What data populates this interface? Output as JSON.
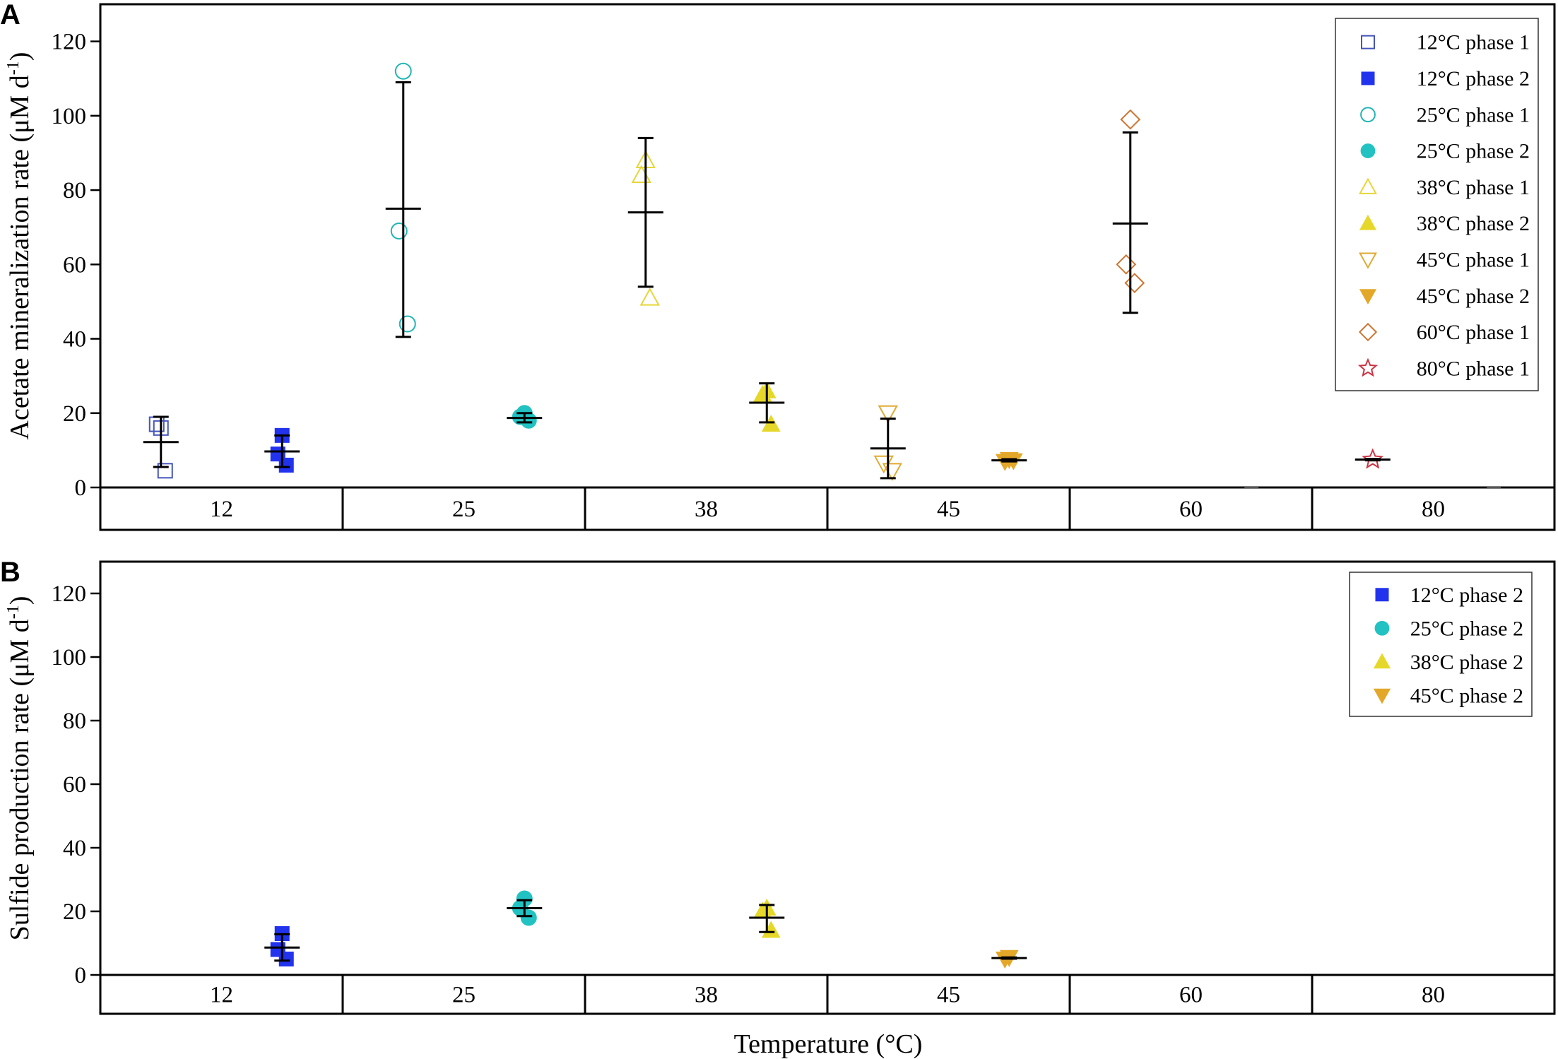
{
  "chart_data": [
    {
      "panel": "A",
      "type": "scatter",
      "ylabel": "Acetate mineralization rate (μM d",
      "ylabel_sup": "-1",
      "ylabel_close": ")",
      "ylim": [
        0,
        130
      ],
      "yticks": [
        0,
        20,
        40,
        60,
        80,
        100,
        120
      ],
      "categories": [
        "12",
        "25",
        "38",
        "45",
        "60",
        "80"
      ],
      "legend_position": "top-right",
      "series": [
        {
          "name": "12°C phase 1",
          "color": "#4455bb",
          "marker": "square-open",
          "category": "12",
          "side": 0,
          "points": [
            16,
            17,
            4.5
          ],
          "mean": 12.2,
          "err": [
            5.5,
            19
          ]
        },
        {
          "name": "12°C phase 2",
          "color": "#2233ee",
          "marker": "square-filled",
          "category": "12",
          "side": 1,
          "points": [
            14,
            9,
            6
          ],
          "mean": 9.7,
          "err": [
            5.5,
            14
          ]
        },
        {
          "name": "25°C phase 1",
          "color": "#22b5b5",
          "marker": "circle-open",
          "category": "25",
          "side": 0,
          "points": [
            112,
            69,
            44
          ],
          "mean": 75,
          "err": [
            40.5,
            109
          ]
        },
        {
          "name": "25°C phase 2",
          "color": "#22c2c2",
          "marker": "circle-filled",
          "category": "25",
          "side": 1,
          "points": [
            20,
            19,
            18
          ],
          "mean": 18.7,
          "err": [
            17.5,
            20
          ]
        },
        {
          "name": "38°C phase 1",
          "color": "#e6d63a",
          "marker": "triangle-up-open",
          "category": "38",
          "side": 0,
          "points": [
            88,
            84,
            51
          ],
          "mean": 74,
          "err": [
            54,
            94
          ]
        },
        {
          "name": "38°C phase 2",
          "color": "#e6d82a",
          "marker": "triangle-up-filled",
          "category": "38",
          "side": 1,
          "points": [
            26,
            25,
            17
          ],
          "mean": 22.8,
          "err": [
            17.5,
            28
          ]
        },
        {
          "name": "45°C phase 1",
          "color": "#e0aa33",
          "marker": "triangle-down-open",
          "category": "45",
          "side": 0,
          "points": [
            20,
            6.5,
            4.5
          ],
          "mean": 10.5,
          "err": [
            2.5,
            18.5
          ]
        },
        {
          "name": "45°C phase 2",
          "color": "#e3a82a",
          "marker": "triangle-down-filled",
          "category": "45",
          "side": 1,
          "points": [
            7.5,
            7,
            7.2
          ],
          "mean": 7.3,
          "err": [
            7,
            7.6
          ]
        },
        {
          "name": "60°C phase 1",
          "color": "#cc7733",
          "marker": "diamond-open",
          "category": "60",
          "side": 0,
          "points": [
            99,
            60,
            55
          ],
          "mean": 71,
          "err": [
            47,
            95.5
          ]
        },
        {
          "name": "80°C phase 1",
          "color": "#cc3344",
          "marker": "star-open",
          "category": "80",
          "side": 0,
          "points": [
            7.5
          ],
          "mean": 7.5,
          "err": [
            7.3,
            7.7
          ]
        }
      ],
      "zero_marks": [
        {
          "category": "60",
          "side": 1,
          "value": 0
        },
        {
          "category": "80",
          "side": 1,
          "value": 0
        }
      ]
    },
    {
      "panel": "B",
      "type": "scatter",
      "ylabel": "Sulfide production rate (μM d",
      "ylabel_sup": "-1",
      "ylabel_close": ")",
      "ylim": [
        0,
        130
      ],
      "yticks": [
        0,
        20,
        40,
        60,
        80,
        100,
        120
      ],
      "categories": [
        "12",
        "25",
        "38",
        "45",
        "60",
        "80"
      ],
      "legend_position": "top-right",
      "xlabel": "Temperature (°C)",
      "series": [
        {
          "name": "12°C phase 2",
          "color": "#2233ee",
          "marker": "square-filled",
          "category": "12",
          "side": 1,
          "points": [
            13,
            8,
            5
          ],
          "mean": 8.6,
          "err": [
            4.5,
            12.8
          ]
        },
        {
          "name": "25°C phase 2",
          "color": "#22c2c2",
          "marker": "circle-filled",
          "category": "25",
          "side": 1,
          "points": [
            24,
            21,
            18
          ],
          "mean": 21,
          "err": [
            18.5,
            23.5
          ]
        },
        {
          "name": "38°C phase 2",
          "color": "#e6d82a",
          "marker": "triangle-up-filled",
          "category": "38",
          "side": 1,
          "points": [
            21,
            20,
            14
          ],
          "mean": 18,
          "err": [
            13.5,
            22
          ]
        },
        {
          "name": "45°C phase 2",
          "color": "#e3a82a",
          "marker": "triangle-down-filled",
          "category": "45",
          "side": 1,
          "points": [
            5.5,
            5
          ],
          "mean": 5.3,
          "err": [
            5.1,
            5.5
          ]
        }
      ]
    }
  ]
}
